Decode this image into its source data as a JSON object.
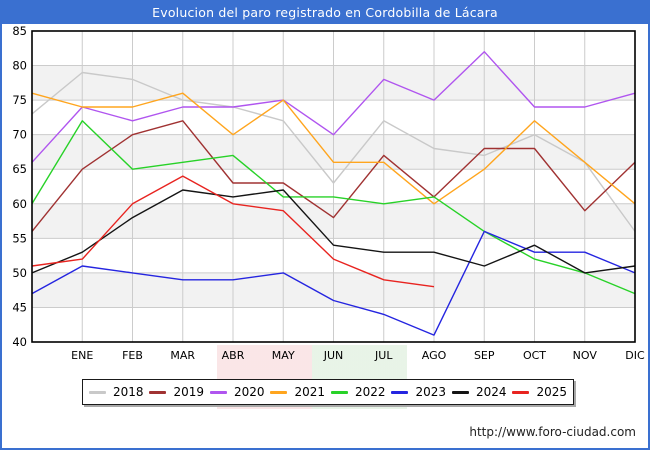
{
  "window": {
    "title": "Evolucion del paro registrado en Cordobilla de Lácara"
  },
  "footer": {
    "url": "http://www.foro-ciudad.com"
  },
  "colors": {
    "frame_blue": "#3a70d0",
    "plot_border": "#000000",
    "grid": "#cccccc",
    "band_shade": "#f2f2f2",
    "axis_text": "#000000"
  },
  "chart_data": {
    "type": "line",
    "title": "Evolucion del paro registrado en Cordobilla de Lácara",
    "xlabel": "",
    "ylabel": "",
    "ylim": [
      40,
      85
    ],
    "yticks": [
      40,
      45,
      50,
      55,
      60,
      65,
      70,
      75,
      80,
      85
    ],
    "grid": true,
    "shaded_bands": [
      [
        45,
        50
      ],
      [
        55,
        60
      ],
      [
        65,
        70
      ],
      [
        75,
        80
      ]
    ],
    "legend_position": "bottom",
    "categories": [
      "",
      "ENE",
      "FEB",
      "MAR",
      "ABR",
      "MAY",
      "JUN",
      "JUL",
      "AGO",
      "SEP",
      "OCT",
      "NOV",
      "DIC"
    ],
    "series": [
      {
        "name": "2018",
        "color": "#c9c9c9",
        "values": [
          73,
          79,
          78,
          75,
          74,
          72,
          63,
          72,
          68,
          67,
          70,
          66,
          56
        ]
      },
      {
        "name": "2019",
        "color": "#a03232",
        "values": [
          56,
          65,
          70,
          72,
          63,
          63,
          58,
          67,
          61,
          68,
          68,
          59,
          66
        ]
      },
      {
        "name": "2020",
        "color": "#b055ef",
        "values": [
          66,
          74,
          72,
          74,
          74,
          75,
          70,
          78,
          75,
          82,
          74,
          74,
          76
        ]
      },
      {
        "name": "2021",
        "color": "#ffa51e",
        "values": [
          76,
          74,
          74,
          76,
          70,
          75,
          66,
          66,
          60,
          65,
          72,
          66,
          60
        ]
      },
      {
        "name": "2022",
        "color": "#28d228",
        "values": [
          60,
          72,
          65,
          66,
          67,
          61,
          61,
          60,
          61,
          56,
          52,
          50,
          47
        ]
      },
      {
        "name": "2023",
        "color": "#2525e0",
        "values": [
          47,
          51,
          50,
          49,
          49,
          50,
          46,
          44,
          41,
          56,
          53,
          53,
          50
        ]
      },
      {
        "name": "2024",
        "color": "#141414",
        "values": [
          50,
          53,
          58,
          62,
          61,
          62,
          54,
          53,
          53,
          51,
          54,
          50,
          51
        ]
      },
      {
        "name": "2025",
        "color": "#e82420",
        "values": [
          51,
          52,
          60,
          64,
          60,
          59,
          52,
          49,
          48
        ]
      }
    ]
  }
}
